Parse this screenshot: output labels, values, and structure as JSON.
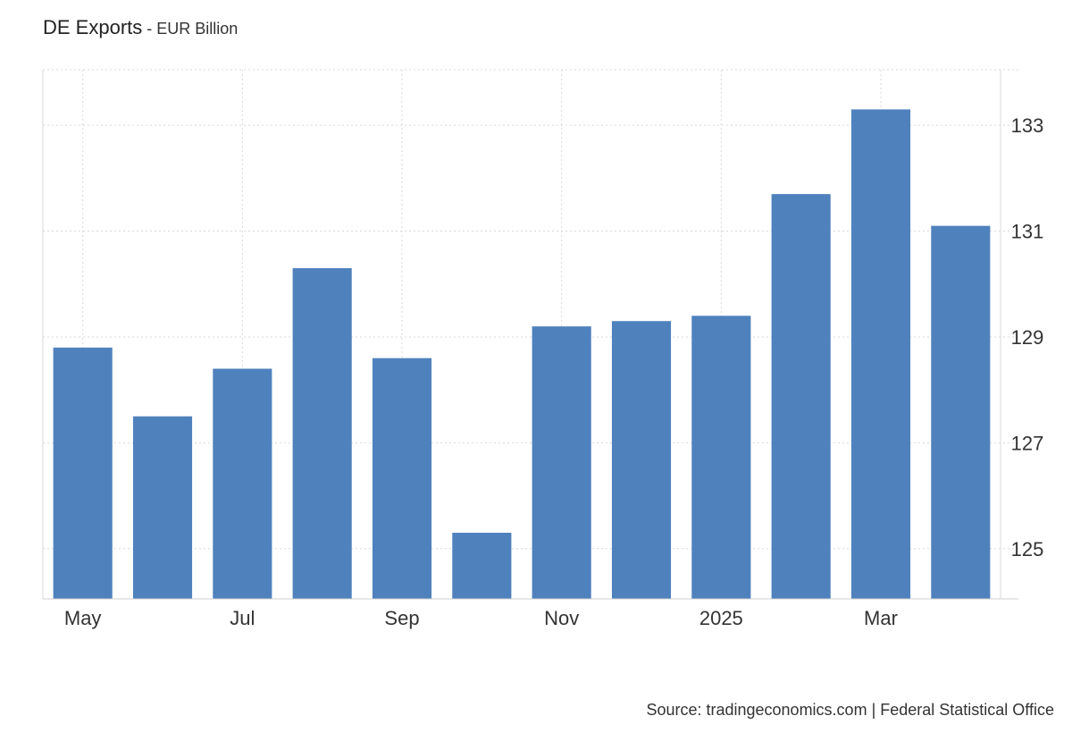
{
  "title": "DE Exports",
  "subtitle": "EUR Billion",
  "subtitle_separator": " - ",
  "source": "Source: tradingeconomics.com | Federal Statistical Office",
  "bar_color": "#4f81bd",
  "chart_data": {
    "type": "bar",
    "title": "DE Exports",
    "subtitle": "EUR Billion",
    "categories": [
      "2024-05",
      "2024-06",
      "2024-07",
      "2024-08",
      "2024-09",
      "2024-10",
      "2024-11",
      "2024-12",
      "2025-01",
      "2025-02",
      "2025-03",
      "2025-04"
    ],
    "x_tick_labels": [
      "May",
      "",
      "Jul",
      "",
      "Sep",
      "",
      "Nov",
      "",
      "2025",
      "",
      "Mar",
      ""
    ],
    "values": [
      128.8,
      127.5,
      128.4,
      130.3,
      128.6,
      125.3,
      129.2,
      129.3,
      129.4,
      131.7,
      133.3,
      131.1
    ],
    "y_ticks": [
      125,
      127,
      129,
      131,
      133
    ],
    "ylim": [
      124.05,
      134.05
    ],
    "y_axis_position": "right",
    "grid": true,
    "legend": "none"
  }
}
